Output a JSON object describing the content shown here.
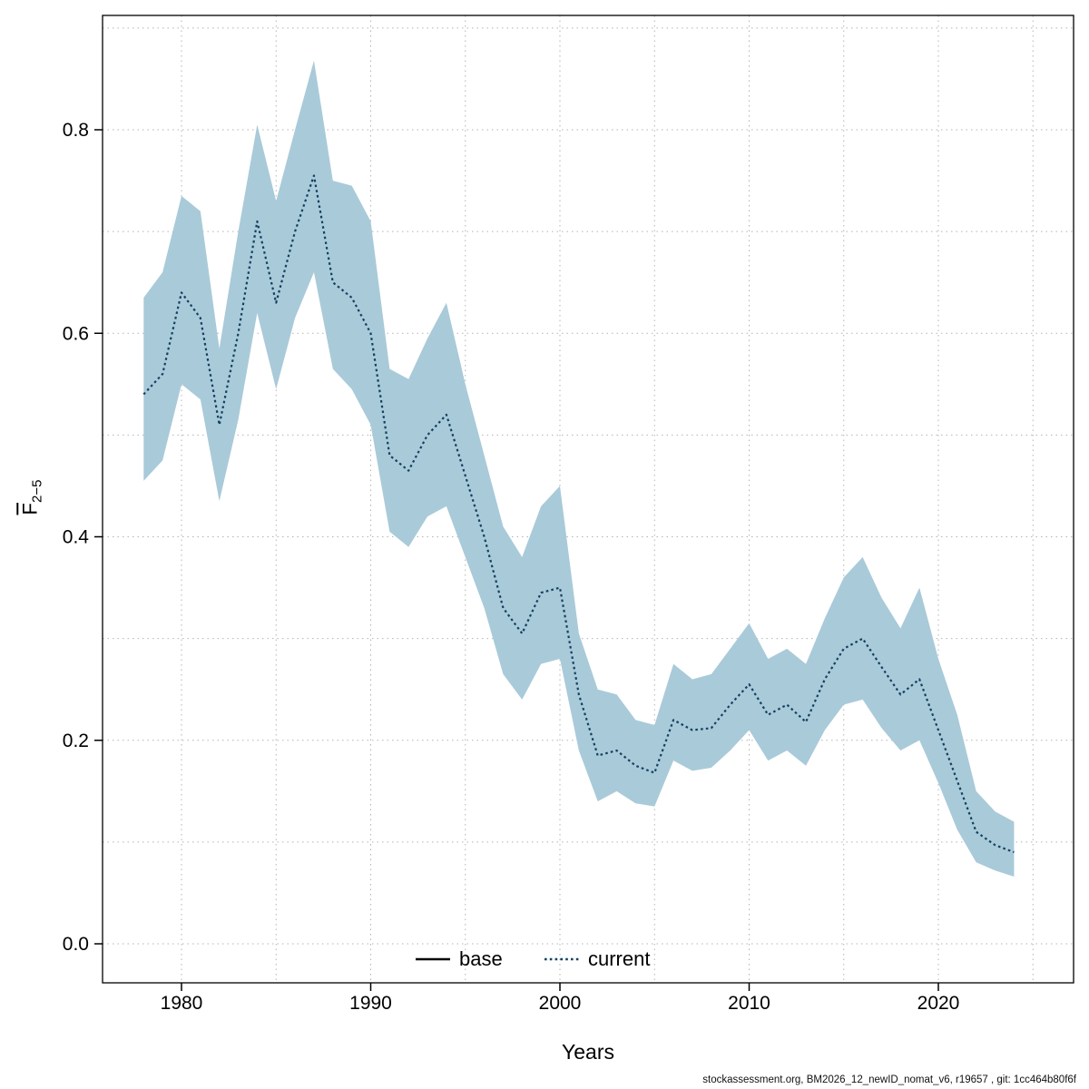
{
  "page": {
    "background": "#ffffff"
  },
  "footer": {
    "text": "stockassessment.org, BM2026_12_newID_nomat_v6, r19657 , git: 1cc464b80f6f"
  },
  "chart_data": {
    "type": "area",
    "title": "",
    "xlabel": "Years",
    "ylabel": {
      "letter": "F",
      "subscript": "2−5",
      "overline": true
    },
    "x": [
      1978,
      1979,
      1980,
      1981,
      1982,
      1983,
      1984,
      1985,
      1986,
      1987,
      1988,
      1989,
      1990,
      1991,
      1992,
      1993,
      1994,
      1995,
      1996,
      1997,
      1998,
      1999,
      2000,
      2001,
      2002,
      2003,
      2004,
      2005,
      2006,
      2007,
      2008,
      2009,
      2010,
      2011,
      2012,
      2013,
      2014,
      2015,
      2016,
      2017,
      2018,
      2019,
      2020,
      2021,
      2022,
      2023,
      2024
    ],
    "series": [
      {
        "name": "current",
        "style": "dotted",
        "color": "#15405f",
        "values": [
          0.54,
          0.56,
          0.64,
          0.615,
          0.51,
          0.6,
          0.71,
          0.63,
          0.7,
          0.755,
          0.65,
          0.635,
          0.6,
          0.48,
          0.465,
          0.5,
          0.52,
          0.46,
          0.4,
          0.33,
          0.305,
          0.345,
          0.35,
          0.245,
          0.185,
          0.19,
          0.175,
          0.168,
          0.22,
          0.21,
          0.212,
          0.235,
          0.255,
          0.225,
          0.235,
          0.218,
          0.26,
          0.29,
          0.3,
          0.272,
          0.245,
          0.26,
          0.21,
          0.16,
          0.11,
          0.097,
          0.09
        ]
      }
    ],
    "band": {
      "name": "confidence-interval",
      "color": "#a9cad9",
      "upper": [
        0.635,
        0.66,
        0.735,
        0.72,
        0.585,
        0.7,
        0.805,
        0.73,
        0.8,
        0.868,
        0.75,
        0.745,
        0.71,
        0.565,
        0.555,
        0.595,
        0.63,
        0.55,
        0.48,
        0.41,
        0.38,
        0.43,
        0.45,
        0.305,
        0.25,
        0.245,
        0.22,
        0.215,
        0.275,
        0.26,
        0.265,
        0.29,
        0.315,
        0.28,
        0.29,
        0.275,
        0.32,
        0.36,
        0.38,
        0.34,
        0.31,
        0.35,
        0.28,
        0.225,
        0.15,
        0.13,
        0.12
      ],
      "lower": [
        0.455,
        0.475,
        0.55,
        0.535,
        0.435,
        0.515,
        0.62,
        0.545,
        0.615,
        0.66,
        0.565,
        0.545,
        0.51,
        0.405,
        0.39,
        0.42,
        0.43,
        0.38,
        0.33,
        0.265,
        0.24,
        0.275,
        0.28,
        0.19,
        0.14,
        0.15,
        0.138,
        0.135,
        0.18,
        0.17,
        0.173,
        0.19,
        0.21,
        0.18,
        0.19,
        0.175,
        0.21,
        0.235,
        0.24,
        0.212,
        0.19,
        0.2,
        0.158,
        0.112,
        0.08,
        0.072,
        0.066
      ]
    },
    "legend": [
      {
        "label": "base",
        "line": "solid",
        "color": "#000000"
      },
      {
        "label": "current",
        "line": "dotted",
        "color": "#15405f"
      }
    ],
    "legend_position": "bottom-center-inside",
    "axes": {
      "x_ticks_labeled": [
        1980,
        1990,
        2000,
        2010,
        2020
      ],
      "x_grid_step": 5,
      "y_ticks_labeled": [
        "0.0",
        "0.2",
        "0.4",
        "0.6",
        "0.8"
      ],
      "y_grid_step": 0.1,
      "xlim": [
        1975.8,
        2027.2
      ],
      "ylim": [
        -0.038,
        0.912
      ],
      "grid": true,
      "grid_color": "#b3b3b3"
    }
  }
}
